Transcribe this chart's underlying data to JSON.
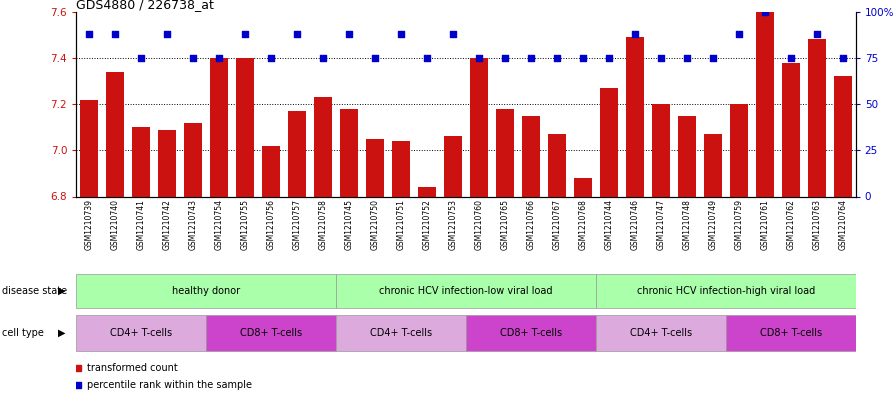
{
  "title": "GDS4880 / 226738_at",
  "samples": [
    "GSM1210739",
    "GSM1210740",
    "GSM1210741",
    "GSM1210742",
    "GSM1210743",
    "GSM1210754",
    "GSM1210755",
    "GSM1210756",
    "GSM1210757",
    "GSM1210758",
    "GSM1210745",
    "GSM1210750",
    "GSM1210751",
    "GSM1210752",
    "GSM1210753",
    "GSM1210760",
    "GSM1210765",
    "GSM1210766",
    "GSM1210767",
    "GSM1210768",
    "GSM1210744",
    "GSM1210746",
    "GSM1210747",
    "GSM1210748",
    "GSM1210749",
    "GSM1210759",
    "GSM1210761",
    "GSM1210762",
    "GSM1210763",
    "GSM1210764"
  ],
  "bar_values": [
    7.22,
    7.34,
    7.1,
    7.09,
    7.12,
    7.4,
    7.4,
    7.02,
    7.17,
    7.23,
    7.18,
    7.05,
    7.04,
    6.84,
    7.06,
    7.4,
    7.18,
    7.15,
    7.07,
    6.88,
    7.27,
    7.49,
    7.2,
    7.15,
    7.07,
    7.2,
    7.6,
    7.38,
    7.48,
    7.32
  ],
  "percentile_values": [
    88,
    88,
    75,
    88,
    75,
    75,
    88,
    75,
    88,
    75,
    88,
    75,
    88,
    75,
    88,
    75,
    75,
    75,
    75,
    75,
    75,
    88,
    75,
    75,
    75,
    88,
    100,
    75,
    88,
    75
  ],
  "ylim_left": [
    6.8,
    7.6
  ],
  "ylim_right": [
    0,
    100
  ],
  "yticks_left": [
    6.8,
    7.0,
    7.2,
    7.4,
    7.6
  ],
  "yticks_right": [
    0,
    25,
    50,
    75,
    100
  ],
  "bar_color": "#cc1111",
  "dot_color": "#0000cc",
  "background_color": "#ffffff",
  "ds_groups": [
    {
      "label": "healthy donor",
      "start": 0,
      "end": 10
    },
    {
      "label": "chronic HCV infection-low viral load",
      "start": 10,
      "end": 20
    },
    {
      "label": "chronic HCV infection-high viral load",
      "start": 20,
      "end": 30
    }
  ],
  "ct_groups": [
    {
      "label": "CD4+ T-cells",
      "start": 0,
      "end": 5,
      "color": "#ddaadd"
    },
    {
      "label": "CD8+ T-cells",
      "start": 5,
      "end": 10,
      "color": "#cc44cc"
    },
    {
      "label": "CD4+ T-cells",
      "start": 10,
      "end": 15,
      "color": "#ddaadd"
    },
    {
      "label": "CD8+ T-cells",
      "start": 15,
      "end": 20,
      "color": "#cc44cc"
    },
    {
      "label": "CD4+ T-cells",
      "start": 20,
      "end": 25,
      "color": "#ddaadd"
    },
    {
      "label": "CD8+ T-cells",
      "start": 25,
      "end": 30,
      "color": "#cc44cc"
    }
  ],
  "ds_color": "#aaffaa",
  "legend_bar_label": "transformed count",
  "legend_dot_label": "percentile rank within the sample"
}
